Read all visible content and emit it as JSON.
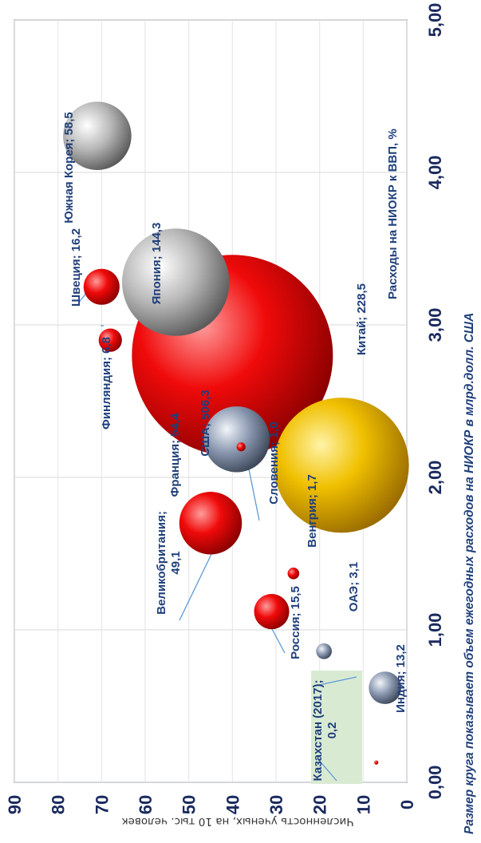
{
  "chart_data": {
    "type": "scatter",
    "subtype": "bubble",
    "rotation": "90deg clockwise",
    "xlabel": "Расходы на НИОКР к ВВП, %",
    "ylabel": "Численность ученых, на  10 тыс. человек",
    "caption": "Размер круга показывает объем ежегодных расходов на НИОКР в млрд.долл. США",
    "xlim": [
      0,
      5
    ],
    "ylim": [
      0,
      90
    ],
    "xticks": [
      "0,00",
      "1,00",
      "2,00",
      "3,00",
      "4,00",
      "5,00"
    ],
    "yticks": [
      "0",
      "10",
      "20",
      "30",
      "40",
      "50",
      "60",
      "70",
      "80",
      "90"
    ],
    "grid": true,
    "points": [
      {
        "label": "Южная Корея;  58,5",
        "x": 4.24,
        "y": 71,
        "size": 58.5,
        "color": "#b0b0b0"
      },
      {
        "label": "Япония;  144,3",
        "x": 3.28,
        "y": 53,
        "size": 144.3,
        "color": "#b0b0b0"
      },
      {
        "label": "Швеция;  16,2",
        "x": 3.25,
        "y": 70,
        "size": 16.2,
        "color": "#e00000"
      },
      {
        "label": "Финляндия;  6,8",
        "x": 2.9,
        "y": 68,
        "size": 6.8,
        "color": "#e00000"
      },
      {
        "label": "Китай;  228,5",
        "x": 2.08,
        "y": 15,
        "size": 228.5,
        "color": "#e8b400"
      },
      {
        "label": "США;  506,3",
        "x": 2.8,
        "y": 40,
        "size": 506.3,
        "color": "#e00000"
      },
      {
        "label": "Франция;  54,4",
        "x": 2.25,
        "y": 39,
        "size": 54.4,
        "color": "#8090a8"
      },
      {
        "label": "Словения;  1,0",
        "x": 2.2,
        "y": 38,
        "size": 1.0,
        "color": "#e00000"
      },
      {
        "label": "Великобритания;\n49,1",
        "x": 1.7,
        "y": 45,
        "size": 49.1,
        "color": "#e00000"
      },
      {
        "label": "Венгрия;  1,7",
        "x": 1.37,
        "y": 26,
        "size": 1.7,
        "color": "#e00000"
      },
      {
        "label": "Россия;  15,5",
        "x": 1.12,
        "y": 31,
        "size": 15.5,
        "color": "#e00000"
      },
      {
        "label": "ОАЭ;  3,1",
        "x": 0.86,
        "y": 19,
        "size": 3.1,
        "color": "#8090a8"
      },
      {
        "label": "Индия;  13,2",
        "x": 0.62,
        "y": 5,
        "size": 13.2,
        "color": "#8090a8"
      },
      {
        "label": "Казахстан (2017);\n0,2",
        "x": 0.13,
        "y": 7,
        "size": 0.2,
        "color": "#e00000"
      }
    ],
    "colors": {
      "axis": "#1a2a5e",
      "label": "#1f3f7a",
      "leader": "#5b9bd5",
      "kz_box": "#d9ead3"
    }
  }
}
